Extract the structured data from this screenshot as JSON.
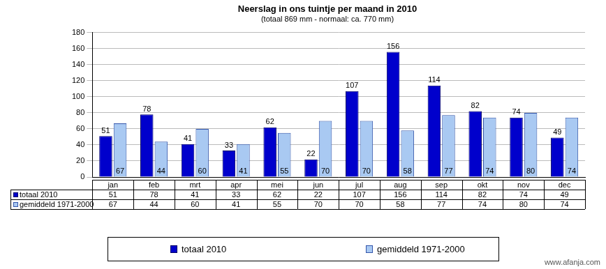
{
  "chart_data": {
    "type": "bar",
    "title": "Neerslag in ons tuintje per maand in 2010",
    "subtitle": "(totaal 869 mm - normaal: ca. 770 mm)",
    "categories": [
      "jan",
      "feb",
      "mrt",
      "apr",
      "mei",
      "jun",
      "jul",
      "aug",
      "sep",
      "okt",
      "nov",
      "dec"
    ],
    "series": [
      {
        "name": "totaal 2010",
        "color": "#0000cc",
        "values": [
          51,
          78,
          41,
          33,
          62,
          22,
          107,
          156,
          114,
          82,
          74,
          49
        ]
      },
      {
        "name": "gemiddeld 1971-2000",
        "color": "#a9c9f2",
        "values": [
          67,
          44,
          60,
          41,
          55,
          70,
          70,
          58,
          77,
          74,
          80,
          74
        ]
      }
    ],
    "ylim": [
      0,
      180
    ],
    "yticks": [
      0,
      20,
      40,
      60,
      80,
      100,
      120,
      140,
      160,
      180
    ],
    "grid": true,
    "legend": "bottom",
    "data_labels": true,
    "annotations": [
      "www.afanja.com"
    ]
  }
}
